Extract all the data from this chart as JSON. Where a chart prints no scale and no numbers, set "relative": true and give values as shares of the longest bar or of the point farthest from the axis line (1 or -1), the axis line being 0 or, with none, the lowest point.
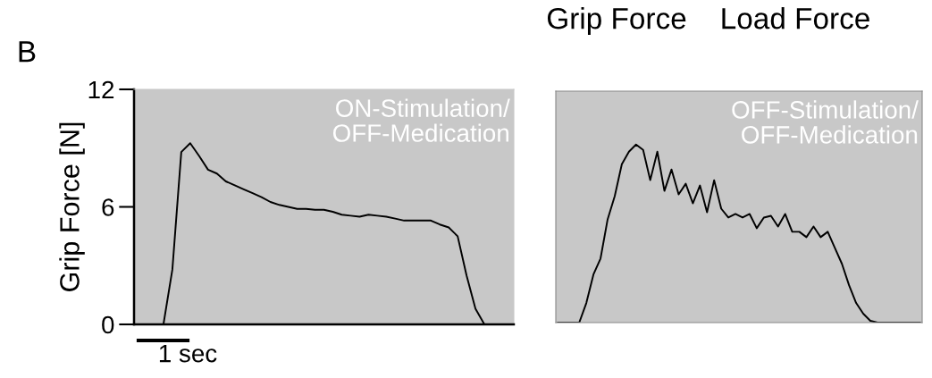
{
  "chart_data": [
    {
      "type": "line",
      "ylabel": "Grip Force [N]",
      "ylim": [
        0,
        12
      ],
      "yticks": [
        0,
        6,
        12
      ],
      "tick_labels": "y",
      "grid": false,
      "legend": false,
      "annotations": [
        "B",
        "Grip Force",
        "Load Force",
        "ON-Stimulation/\nOFF-Medication",
        "1 sec"
      ],
      "categories": [
        null,
        null,
        null,
        null,
        null,
        null,
        null,
        null,
        null,
        null,
        null,
        null,
        null,
        null,
        null,
        null,
        null,
        null,
        null,
        null,
        null,
        null,
        null,
        null,
        null,
        null,
        null,
        null,
        null,
        null,
        null,
        null,
        null,
        null,
        null,
        null,
        null,
        null,
        null,
        null,
        null,
        null,
        null
      ],
      "series": [
        {
          "color": "#000000",
          "values": [
            0,
            0,
            0,
            0,
            2.8,
            8.8,
            9.25,
            8.6,
            7.9,
            7.7,
            7.3,
            7.1,
            6.9,
            6.7,
            6.5,
            6.25,
            6.1,
            6.0,
            5.9,
            5.9,
            5.85,
            5.85,
            5.75,
            5.6,
            5.55,
            5.5,
            5.6,
            5.55,
            5.5,
            5.4,
            5.3,
            5.3,
            5.3,
            5.3,
            5.1,
            4.95,
            4.5,
            2.5,
            0.8,
            0,
            0,
            0,
            0
          ]
        }
      ]
    },
    {
      "type": "line",
      "relative": true,
      "grid": false,
      "legend": false,
      "annotations": [
        "OFF-Stimulation/\nOFF-Medication"
      ],
      "categories": [
        null,
        null,
        null,
        null,
        null,
        null,
        null,
        null,
        null,
        null,
        null,
        null,
        null,
        null,
        null,
        null,
        null,
        null,
        null,
        null,
        null,
        null,
        null,
        null,
        null,
        null,
        null,
        null,
        null,
        null,
        null,
        null,
        null,
        null,
        null,
        null,
        null,
        null,
        null,
        null,
        null,
        null,
        null,
        null,
        null,
        null,
        null,
        null,
        null,
        null,
        null,
        null
      ],
      "series": [
        {
          "color": "#000000",
          "values": [
            0,
            0,
            0,
            0,
            0.11,
            0.27,
            0.36,
            0.58,
            0.71,
            0.89,
            0.96,
            1.0,
            0.97,
            0.8,
            0.96,
            0.74,
            0.86,
            0.72,
            0.78,
            0.67,
            0.77,
            0.62,
            0.8,
            0.64,
            0.59,
            0.61,
            0.59,
            0.61,
            0.53,
            0.59,
            0.6,
            0.54,
            0.61,
            0.51,
            0.51,
            0.48,
            0.54,
            0.48,
            0.51,
            0.42,
            0.33,
            0.21,
            0.11,
            0.05,
            0.01,
            0,
            0,
            0,
            0,
            0,
            0,
            0
          ]
        }
      ]
    }
  ]
}
